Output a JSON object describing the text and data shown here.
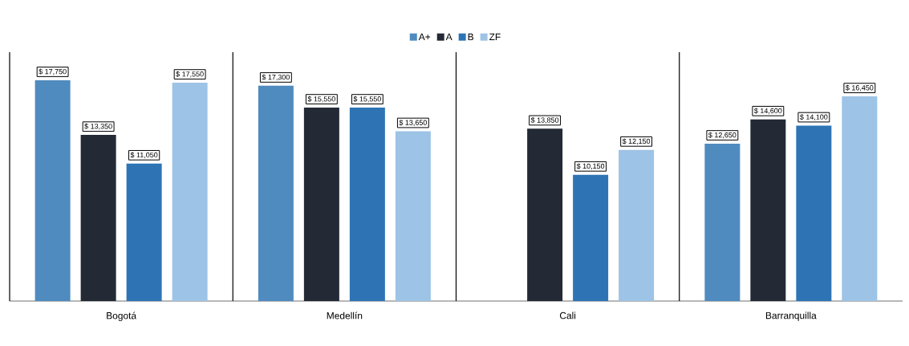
{
  "chart_data": {
    "type": "bar",
    "categories": [
      "Bogotá",
      "Medellín",
      "Cali",
      "Barranquilla"
    ],
    "series": [
      {
        "name": "A+",
        "color": "#4f8bbf",
        "values": [
          17750,
          17300,
          null,
          12650
        ],
        "value_labels": [
          "$ 17,750",
          "$ 17,300",
          null,
          "$ 12,650"
        ]
      },
      {
        "name": "A",
        "color": "#232a35",
        "values": [
          13350,
          15550,
          13850,
          14600
        ],
        "value_labels": [
          "$ 13,350",
          "$ 15,550",
          "$ 13,850",
          "$ 14,600"
        ]
      },
      {
        "name": "B",
        "color": "#2e74b5",
        "values": [
          11050,
          15550,
          10150,
          14100
        ],
        "value_labels": [
          "$ 11,050",
          "$ 15,550",
          "$ 10,150",
          "$ 14,100"
        ]
      },
      {
        "name": "ZF",
        "color": "#9dc3e6",
        "values": [
          17550,
          13650,
          12150,
          16450
        ],
        "value_labels": [
          "$ 17,550",
          "$ 13,650",
          "$ 12,150",
          "$ 16,450"
        ]
      }
    ],
    "ylim": [
      0,
      20000
    ],
    "legend": "top"
  }
}
